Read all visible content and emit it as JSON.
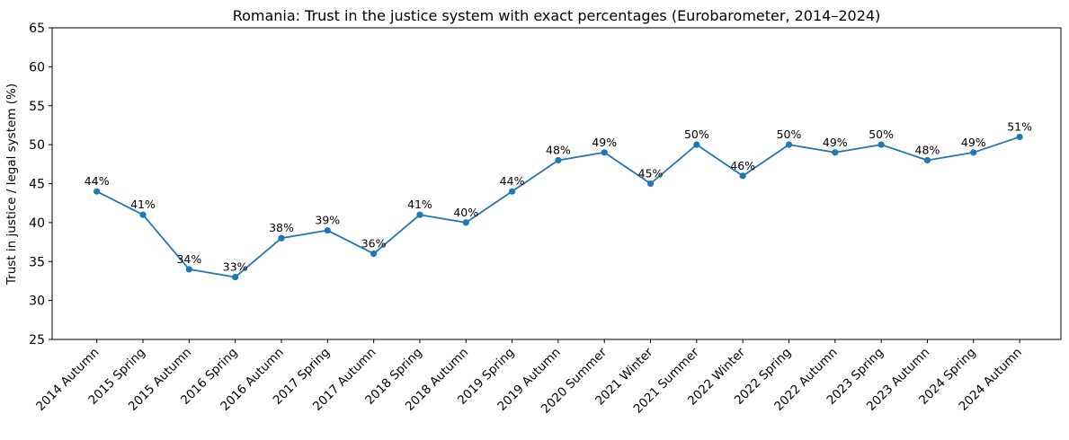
{
  "chart_data": {
    "type": "line",
    "title": "Romania: Trust in the justice system with exact percentages (Eurobarometer, 2014–2024)",
    "ylabel": "Trust in justice / legal system (%)",
    "xlabel": "",
    "categories": [
      "2014 Autumn",
      "2015 Spring",
      "2015 Autumn",
      "2016 Spring",
      "2016 Autumn",
      "2017 Spring",
      "2017 Autumn",
      "2018 Spring",
      "2018 Autumn",
      "2019 Spring",
      "2019 Autumn",
      "2020 Summer",
      "2021 Winter",
      "2021 Summer",
      "2022 Winter",
      "2022 Spring",
      "2022 Autumn",
      "2023 Spring",
      "2023 Autumn",
      "2024 Spring",
      "2024 Autumn"
    ],
    "values": [
      44,
      41,
      34,
      33,
      38,
      39,
      36,
      41,
      40,
      44,
      48,
      49,
      45,
      50,
      46,
      50,
      49,
      50,
      48,
      49,
      51
    ],
    "point_labels": [
      "44%",
      "41%",
      "34%",
      "33%",
      "38%",
      "39%",
      "36%",
      "41%",
      "40%",
      "44%",
      "48%",
      "49%",
      "45%",
      "50%",
      "46%",
      "50%",
      "49%",
      "50%",
      "48%",
      "49%",
      "51%"
    ],
    "ylim": [
      25,
      65
    ],
    "yticks": [
      25,
      30,
      35,
      40,
      45,
      50,
      55,
      60,
      65
    ],
    "x_tick_rotation": 45,
    "grid": false,
    "legend": false,
    "marker": "circle",
    "line_color": "#1f77b4",
    "axis_color": "#000000",
    "background": "#ffffff"
  }
}
